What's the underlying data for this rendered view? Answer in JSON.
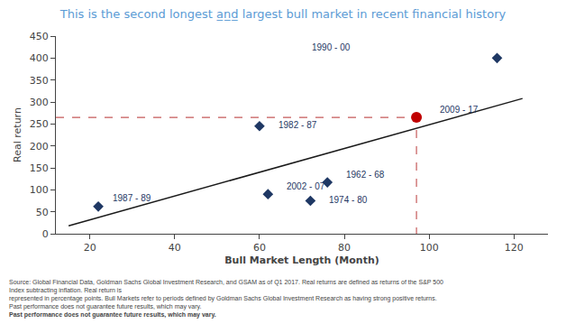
{
  "chart_data": {
    "type": "scatter",
    "title": "This is the second longest a̲n̲d̲ largest bull market in recent financial history",
    "title_color": "#5b9bd5",
    "xlabel": "Bull Market Length (Month)",
    "ylabel": "Real return",
    "series": [
      {
        "type": "line",
        "color": "#1a1a1a",
        "x": [
          15,
          122
        ],
        "values": [
          18,
          308
        ]
      },
      {
        "type": "line",
        "line_style": "dashed",
        "color": "#c55a5a",
        "x": [
          12,
          97,
          97
        ],
        "values": [
          265,
          265,
          0
        ]
      },
      {
        "type": "scatter",
        "marker": "diamond",
        "color": "#1f3864",
        "x": [
          22,
          60,
          62,
          72,
          76,
          116
        ],
        "values": [
          62,
          245,
          90,
          75,
          117,
          400
        ],
        "labels": [
          "1987 - 89",
          "1982 - 87",
          "2002 - 07",
          "1974 - 80",
          "1962 - 68",
          "1990 - 00"
        ]
      },
      {
        "type": "scatter",
        "marker": "circle",
        "color": "#c00000",
        "x": [
          97
        ],
        "values": [
          265
        ],
        "labels": [
          "2009 - 17"
        ]
      }
    ],
    "label_color": "#1f3864",
    "xlim": [
      12,
      128
    ],
    "ylim": [
      0,
      450
    ],
    "xticks": [
      20,
      40,
      60,
      80,
      100,
      120
    ],
    "yticks": [
      0,
      50,
      100,
      150,
      200,
      250,
      300,
      350,
      400,
      450
    ],
    "grid": false,
    "footnote": [
      "Source: Global Financial Data, Goldman Sachs Global Investment Research, and GSAM as of Q1 2017. Real returns are defined as returns of the S&P 500 Index subtracting inflation. Real return is",
      "represented in percentage points. Bull Markets refer to periods defined by Goldman Sachs Global Investment Research as having strong positive returns. Past performance does not guarantee future results, which may vary."
    ],
    "footnote_bold": "Past performance does not guarantee future results, which may vary."
  }
}
